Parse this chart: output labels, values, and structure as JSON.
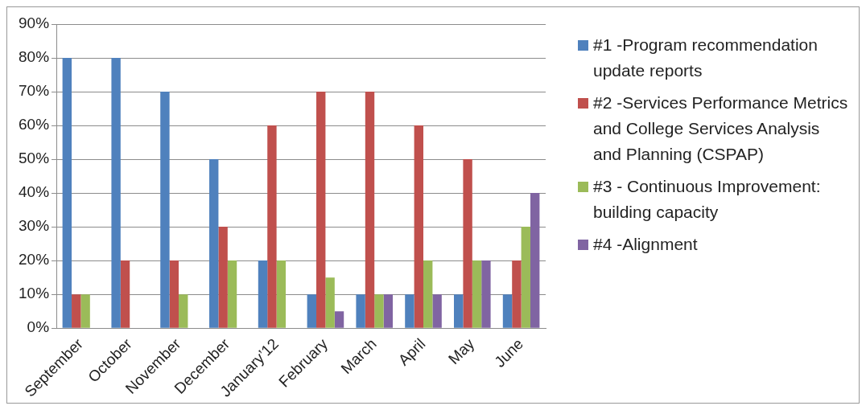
{
  "chart_data": {
    "type": "bar",
    "categories": [
      "September",
      "October",
      "November",
      "December",
      "January’12",
      "February",
      "March",
      "April",
      "May",
      "June"
    ],
    "series": [
      {
        "name": "#1 -Program recommendation update reports",
        "color": "#4f81bd",
        "values": [
          80,
          80,
          70,
          50,
          20,
          10,
          10,
          10,
          10,
          10
        ]
      },
      {
        "name": "#2 -Services Performance Metrics and College Services Analysis and Planning (CSPAP)",
        "color": "#c0504d",
        "values": [
          10,
          20,
          20,
          30,
          60,
          70,
          70,
          60,
          50,
          20
        ]
      },
      {
        "name": "#3 - Continuous Improvement: building capacity",
        "color": "#9bbb59",
        "values": [
          10,
          0,
          10,
          20,
          20,
          15,
          10,
          20,
          20,
          30
        ]
      },
      {
        "name": "#4 -Alignment",
        "color": "#8064a2",
        "values": [
          0,
          0,
          0,
          0,
          0,
          5,
          10,
          10,
          20,
          40
        ]
      }
    ],
    "ylim": [
      0,
      90
    ],
    "yticks": [
      {
        "value": 0,
        "label": "0%"
      },
      {
        "value": 10,
        "label": "10%"
      },
      {
        "value": 20,
        "label": "20%"
      },
      {
        "value": 30,
        "label": "30%"
      },
      {
        "value": 40,
        "label": "40%"
      },
      {
        "value": 50,
        "label": "50%"
      },
      {
        "value": 60,
        "label": "60%"
      },
      {
        "value": 70,
        "label": "70%"
      },
      {
        "value": 80,
        "label": "80%"
      },
      {
        "value": 90,
        "label": "90%"
      }
    ],
    "grid": "y",
    "legend": "right"
  }
}
